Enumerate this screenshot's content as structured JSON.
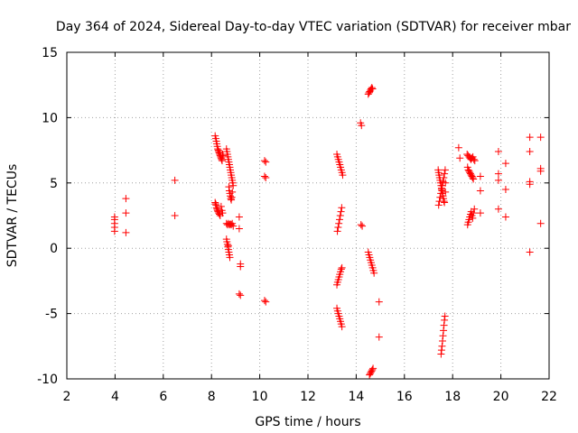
{
  "chart_data": {
    "type": "scatter",
    "title": "Day 364 of 2024, Sidereal Day-to-day VTEC variation (SDTVAR) for receiver mbar",
    "xlabel": "GPS time / hours",
    "ylabel": "SDTVAR / TECUs",
    "xlim": [
      2,
      22
    ],
    "ylim": [
      -10,
      15
    ],
    "xticks": [
      "2",
      "4",
      "6",
      "8",
      "10",
      "12",
      "14",
      "16",
      "18",
      "20",
      "22"
    ],
    "yticks": [
      "15",
      "10",
      "5",
      "0",
      "-5",
      "-10"
    ],
    "grid": true,
    "marker": "+",
    "color": "#ff0000",
    "series": [
      {
        "name": "SDTVAR",
        "points": [
          [
            3.98,
            2.4
          ],
          [
            3.98,
            2.2
          ],
          [
            3.98,
            1.9
          ],
          [
            3.98,
            1.6
          ],
          [
            3.98,
            1.3
          ],
          [
            4.45,
            3.8
          ],
          [
            4.45,
            2.7
          ],
          [
            4.45,
            1.2
          ],
          [
            6.48,
            5.2
          ],
          [
            6.48,
            2.5
          ],
          [
            8.15,
            8.6
          ],
          [
            8.18,
            8.4
          ],
          [
            8.2,
            8.2
          ],
          [
            8.22,
            8.0
          ],
          [
            8.24,
            7.8
          ],
          [
            8.26,
            7.6
          ],
          [
            8.28,
            7.5
          ],
          [
            8.3,
            7.4
          ],
          [
            8.32,
            7.3
          ],
          [
            8.34,
            7.2
          ],
          [
            8.36,
            7.1
          ],
          [
            8.38,
            7.0
          ],
          [
            8.4,
            6.9
          ],
          [
            8.42,
            6.8
          ],
          [
            8.44,
            6.7
          ],
          [
            8.46,
            7.2
          ],
          [
            8.48,
            7.1
          ],
          [
            8.15,
            3.5
          ],
          [
            8.17,
            3.4
          ],
          [
            8.19,
            3.3
          ],
          [
            8.21,
            3.1
          ],
          [
            8.23,
            3.0
          ],
          [
            8.25,
            2.9
          ],
          [
            8.27,
            2.8
          ],
          [
            8.3,
            2.7
          ],
          [
            8.33,
            2.6
          ],
          [
            8.36,
            2.5
          ],
          [
            8.4,
            3.2
          ],
          [
            8.43,
            2.9
          ],
          [
            8.46,
            2.7
          ],
          [
            8.62,
            7.6
          ],
          [
            8.64,
            7.4
          ],
          [
            8.66,
            7.2
          ],
          [
            8.68,
            7.0
          ],
          [
            8.7,
            6.8
          ],
          [
            8.72,
            6.6
          ],
          [
            8.74,
            6.4
          ],
          [
            8.76,
            6.2
          ],
          [
            8.78,
            6.0
          ],
          [
            8.8,
            5.8
          ],
          [
            8.82,
            5.6
          ],
          [
            8.84,
            5.4
          ],
          [
            8.86,
            5.2
          ],
          [
            8.88,
            5.0
          ],
          [
            8.9,
            4.8
          ],
          [
            8.72,
            4.7
          ],
          [
            8.74,
            4.4
          ],
          [
            8.76,
            4.2
          ],
          [
            8.78,
            4.0
          ],
          [
            8.8,
            3.8
          ],
          [
            8.82,
            3.7
          ],
          [
            8.84,
            3.9
          ],
          [
            8.86,
            4.3
          ],
          [
            8.62,
            1.9
          ],
          [
            8.66,
            1.8
          ],
          [
            8.7,
            1.9
          ],
          [
            8.74,
            1.8
          ],
          [
            8.78,
            1.85
          ],
          [
            8.82,
            1.8
          ],
          [
            8.86,
            1.9
          ],
          [
            8.9,
            1.7
          ],
          [
            8.62,
            0.7
          ],
          [
            8.64,
            0.5
          ],
          [
            8.66,
            0.3
          ],
          [
            8.68,
            0.1
          ],
          [
            8.7,
            -0.1
          ],
          [
            8.72,
            -0.3
          ],
          [
            8.74,
            -0.5
          ],
          [
            8.76,
            -0.7
          ],
          [
            8.7,
            0.2
          ],
          [
            9.15,
            2.4
          ],
          [
            9.15,
            1.5
          ],
          [
            9.2,
            -1.2
          ],
          [
            9.2,
            -1.4
          ],
          [
            9.15,
            -3.5
          ],
          [
            9.2,
            -3.6
          ],
          [
            10.2,
            6.7
          ],
          [
            10.25,
            6.6
          ],
          [
            10.2,
            5.5
          ],
          [
            10.25,
            5.4
          ],
          [
            10.2,
            -4.0
          ],
          [
            10.25,
            -4.1
          ],
          [
            13.2,
            7.2
          ],
          [
            13.23,
            7.0
          ],
          [
            13.26,
            6.8
          ],
          [
            13.29,
            6.6
          ],
          [
            13.32,
            6.4
          ],
          [
            13.35,
            6.2
          ],
          [
            13.38,
            6.0
          ],
          [
            13.41,
            5.8
          ],
          [
            13.44,
            5.6
          ],
          [
            13.22,
            1.3
          ],
          [
            13.25,
            1.6
          ],
          [
            13.28,
            1.9
          ],
          [
            13.31,
            2.2
          ],
          [
            13.34,
            2.5
          ],
          [
            13.37,
            2.8
          ],
          [
            13.4,
            3.1
          ],
          [
            13.2,
            -2.8
          ],
          [
            13.23,
            -2.6
          ],
          [
            13.26,
            -2.4
          ],
          [
            13.29,
            -2.2
          ],
          [
            13.32,
            -2.0
          ],
          [
            13.35,
            -1.8
          ],
          [
            13.38,
            -1.6
          ],
          [
            13.41,
            -1.5
          ],
          [
            13.2,
            -4.6
          ],
          [
            13.23,
            -4.8
          ],
          [
            13.26,
            -5.0
          ],
          [
            13.29,
            -5.2
          ],
          [
            13.32,
            -5.4
          ],
          [
            13.35,
            -5.6
          ],
          [
            13.38,
            -5.8
          ],
          [
            13.41,
            -6.0
          ],
          [
            14.18,
            9.6
          ],
          [
            14.22,
            9.4
          ],
          [
            14.2,
            1.8
          ],
          [
            14.25,
            1.7
          ],
          [
            14.5,
            11.8
          ],
          [
            14.53,
            11.9
          ],
          [
            14.56,
            12.0
          ],
          [
            14.59,
            12.1
          ],
          [
            14.62,
            12.2
          ],
          [
            14.65,
            12.3
          ],
          [
            14.68,
            12.2
          ],
          [
            14.5,
            -0.3
          ],
          [
            14.53,
            -0.5
          ],
          [
            14.56,
            -0.7
          ],
          [
            14.59,
            -0.9
          ],
          [
            14.62,
            -1.1
          ],
          [
            14.65,
            -1.3
          ],
          [
            14.68,
            -1.5
          ],
          [
            14.71,
            -1.7
          ],
          [
            14.74,
            -1.9
          ],
          [
            14.55,
            -9.7
          ],
          [
            14.58,
            -9.6
          ],
          [
            14.61,
            -9.5
          ],
          [
            14.64,
            -9.4
          ],
          [
            14.67,
            -9.3
          ],
          [
            14.7,
            -9.2
          ],
          [
            14.95,
            -4.1
          ],
          [
            14.95,
            -6.8
          ],
          [
            17.4,
            6.0
          ],
          [
            17.42,
            5.8
          ],
          [
            17.44,
            5.6
          ],
          [
            17.46,
            5.4
          ],
          [
            17.48,
            5.2
          ],
          [
            17.5,
            5.0
          ],
          [
            17.52,
            4.8
          ],
          [
            17.54,
            4.6
          ],
          [
            17.56,
            4.4
          ],
          [
            17.58,
            4.2
          ],
          [
            17.6,
            4.0
          ],
          [
            17.62,
            3.8
          ],
          [
            17.64,
            3.6
          ],
          [
            17.66,
            3.5
          ],
          [
            17.42,
            3.3
          ],
          [
            17.45,
            3.6
          ],
          [
            17.48,
            3.9
          ],
          [
            17.51,
            4.2
          ],
          [
            17.54,
            4.5
          ],
          [
            17.57,
            4.8
          ],
          [
            17.6,
            5.1
          ],
          [
            17.63,
            5.4
          ],
          [
            17.66,
            5.7
          ],
          [
            17.69,
            6.0
          ],
          [
            17.7,
            4.3
          ],
          [
            17.7,
            5.0
          ],
          [
            17.52,
            -8.1
          ],
          [
            17.54,
            -7.8
          ],
          [
            17.56,
            -7.5
          ],
          [
            17.58,
            -7.1
          ],
          [
            17.6,
            -6.7
          ],
          [
            17.62,
            -6.3
          ],
          [
            17.64,
            -5.9
          ],
          [
            17.66,
            -5.5
          ],
          [
            17.68,
            -5.2
          ],
          [
            18.25,
            7.7
          ],
          [
            18.3,
            6.9
          ],
          [
            18.6,
            7.2
          ],
          [
            18.64,
            7.1
          ],
          [
            18.68,
            7.0
          ],
          [
            18.72,
            6.9
          ],
          [
            18.76,
            6.8
          ],
          [
            18.8,
            6.9
          ],
          [
            18.84,
            7.0
          ],
          [
            18.88,
            6.8
          ],
          [
            18.92,
            6.7
          ],
          [
            18.62,
            6.2
          ],
          [
            18.65,
            6.0
          ],
          [
            18.68,
            5.9
          ],
          [
            18.71,
            5.8
          ],
          [
            18.74,
            5.7
          ],
          [
            18.77,
            5.6
          ],
          [
            18.8,
            5.5
          ],
          [
            18.83,
            5.4
          ],
          [
            18.86,
            5.3
          ],
          [
            18.62,
            1.8
          ],
          [
            18.65,
            2.0
          ],
          [
            18.68,
            2.2
          ],
          [
            18.71,
            2.4
          ],
          [
            18.74,
            2.6
          ],
          [
            18.77,
            2.8
          ],
          [
            18.8,
            2.5
          ],
          [
            18.83,
            2.3
          ],
          [
            18.86,
            2.7
          ],
          [
            18.9,
            3.0
          ],
          [
            19.15,
            5.5
          ],
          [
            19.15,
            4.4
          ],
          [
            19.15,
            2.7
          ],
          [
            19.9,
            7.4
          ],
          [
            19.9,
            5.7
          ],
          [
            19.9,
            5.2
          ],
          [
            19.9,
            3.0
          ],
          [
            20.2,
            6.5
          ],
          [
            20.2,
            4.5
          ],
          [
            20.2,
            2.4
          ],
          [
            21.2,
            8.5
          ],
          [
            21.2,
            7.4
          ],
          [
            21.2,
            5.1
          ],
          [
            21.2,
            4.9
          ],
          [
            21.2,
            -0.3
          ],
          [
            21.65,
            8.5
          ],
          [
            21.65,
            6.1
          ],
          [
            21.65,
            5.9
          ],
          [
            21.65,
            1.9
          ]
        ]
      }
    ]
  }
}
